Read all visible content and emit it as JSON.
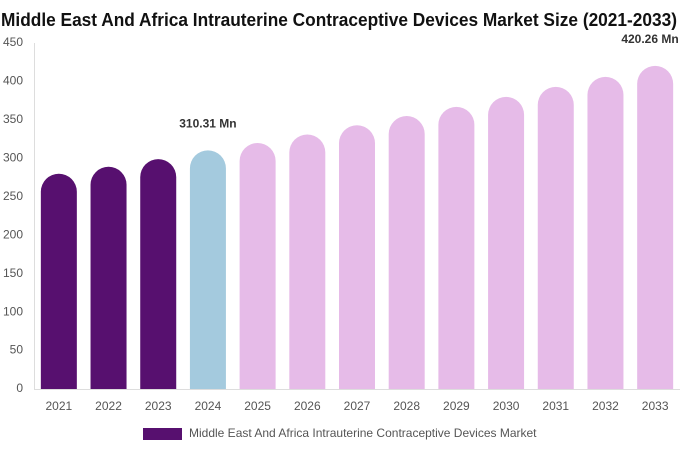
{
  "chart_data": {
    "type": "bar",
    "title": "Middle East And Africa Intrauterine Contraceptive Devices Market Size (2021-2033)",
    "categories": [
      "2021",
      "2022",
      "2023",
      "2024",
      "2025",
      "2026",
      "2027",
      "2028",
      "2029",
      "2030",
      "2031",
      "2032",
      "2033"
    ],
    "series": [
      {
        "name": "Middle East And Africa Intrauterine Contraceptive Devices Market",
        "color": "#57106f",
        "bar_colors": [
          "#57106f",
          "#57106f",
          "#57106f",
          "#a4cade",
          "#e6bbe8",
          "#e6bbe8",
          "#e6bbe8",
          "#e6bbe8",
          "#e6bbe8",
          "#e6bbe8",
          "#e6bbe8",
          "#e6bbe8",
          "#e6bbe8"
        ],
        "values": [
          280,
          289,
          299,
          310.31,
          320,
          331,
          343,
          355,
          367,
          380,
          393,
          406,
          420.26
        ],
        "value_labels": [
          null,
          null,
          null,
          "310.31 Mn",
          null,
          null,
          null,
          null,
          null,
          null,
          null,
          null,
          "420.26 Mn"
        ]
      }
    ],
    "ylim": [
      0,
      450
    ],
    "yticks": [
      0,
      50,
      100,
      150,
      200,
      250,
      300,
      350,
      400,
      450
    ],
    "grid": false,
    "legend": "bottom"
  }
}
